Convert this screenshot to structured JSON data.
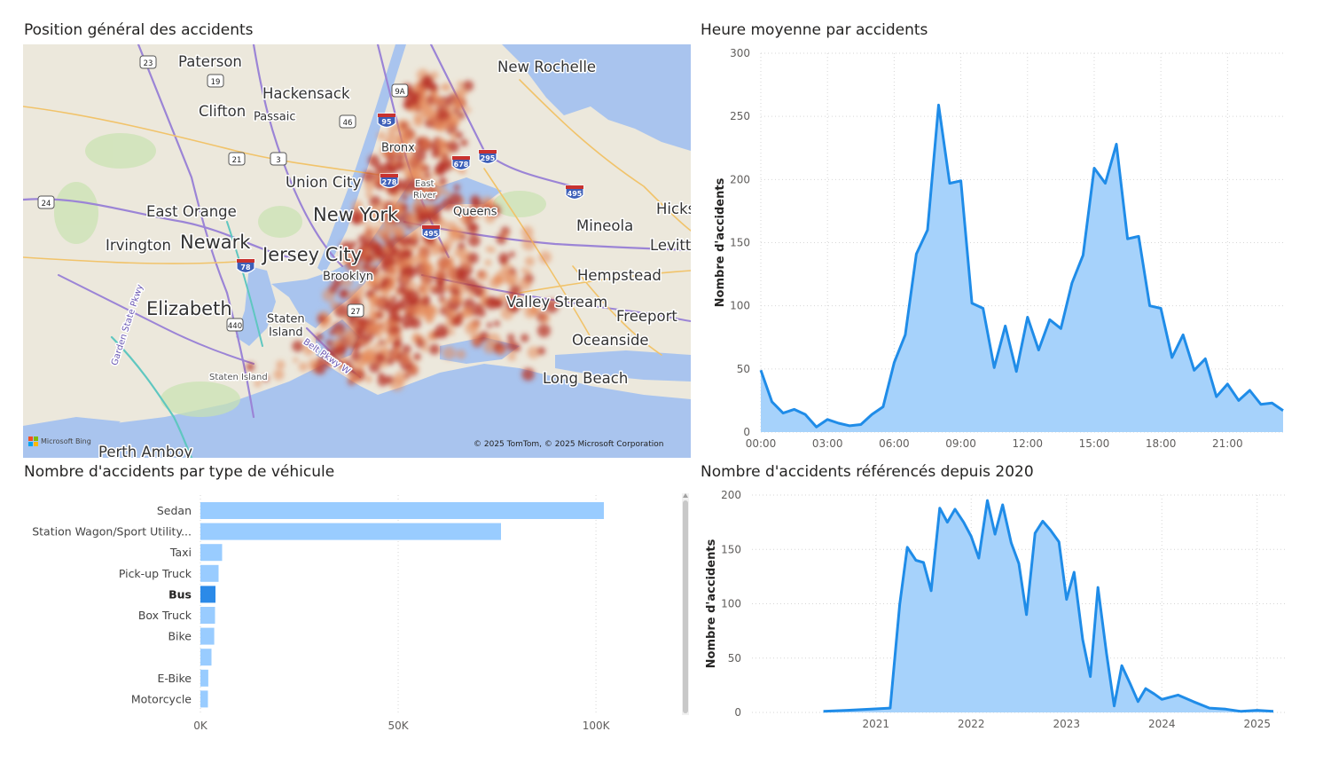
{
  "map": {
    "title": "Position général des accidents",
    "attribution": "© 2025 TomTom, © 2025 Microsoft Corporation",
    "provider": "Microsoft Bing",
    "labels": [
      {
        "text": "Paterson",
        "size": "large"
      },
      {
        "text": "New Rochelle",
        "size": "large"
      },
      {
        "text": "Hackensack",
        "size": "large"
      },
      {
        "text": "Clifton",
        "size": "large"
      },
      {
        "text": "Passaic",
        "size": "medium"
      },
      {
        "text": "Bronx",
        "size": "medium"
      },
      {
        "text": "Union City",
        "size": "large"
      },
      {
        "text": "East River",
        "size": "small"
      },
      {
        "text": "East Orange",
        "size": "large"
      },
      {
        "text": "New York",
        "size": "xlarge"
      },
      {
        "text": "Queens",
        "size": "medium"
      },
      {
        "text": "Mineola",
        "size": "large"
      },
      {
        "text": "Hicks",
        "size": "large"
      },
      {
        "text": "Irvington",
        "size": "large"
      },
      {
        "text": "Newark",
        "size": "xlarge"
      },
      {
        "text": "Jersey City",
        "size": "xlarge"
      },
      {
        "text": "Levitt",
        "size": "large"
      },
      {
        "text": "Hempstead",
        "size": "large"
      },
      {
        "text": "Brooklyn",
        "size": "medium"
      },
      {
        "text": "Elizabeth",
        "size": "xlarge"
      },
      {
        "text": "Valley Stream",
        "size": "large"
      },
      {
        "text": "Freeport",
        "size": "large"
      },
      {
        "text": "Staten Island",
        "size": "medium"
      },
      {
        "text": "Oceanside",
        "size": "large"
      },
      {
        "text": "Staten Island",
        "size": "small"
      },
      {
        "text": "Long Beach",
        "size": "large"
      },
      {
        "text": "Perth Amboy",
        "size": "large"
      },
      {
        "text": "Garden State Pkwy",
        "size": "small"
      },
      {
        "text": "Belt Pkwy W",
        "size": "small"
      }
    ],
    "shields": [
      "23",
      "19",
      "21",
      "3",
      "46",
      "95",
      "278",
      "678",
      "295",
      "9A",
      "24",
      "78",
      "440",
      "27",
      "495",
      "495"
    ]
  },
  "hour_chart": {
    "title": "Heure moyenne par accidents"
  },
  "vehicle_chart": {
    "title": "Nombre d'accidents par type de véhicule"
  },
  "year_chart": {
    "title": "Nombre d'accidents référencés depuis 2020"
  },
  "colors": {
    "line": "#1f8ce8",
    "area": "#a6d2fb",
    "bar": "#99ccff",
    "bar_selected": "#2b8ae8",
    "grid": "#d6d6d6",
    "axis_text": "#605e5c"
  },
  "chart_data": [
    {
      "type": "area",
      "title": "Heure moyenne par accidents",
      "xlabel": "",
      "ylabel": "Nombre d'accidents",
      "x_unit": "hours since 00:00 (30-minute buckets)",
      "x_ticks": [
        "00:00",
        "03:00",
        "06:00",
        "09:00",
        "12:00",
        "15:00",
        "18:00",
        "21:00"
      ],
      "ylim": [
        0,
        300
      ],
      "y_ticks": [
        0,
        50,
        100,
        150,
        200,
        250,
        300
      ],
      "grid": true,
      "series": [
        {
          "x": [
            0,
            0.5,
            1,
            1.5,
            2,
            2.5,
            3,
            3.5,
            4,
            4.5,
            5,
            5.5,
            6,
            6.5,
            7,
            7.5,
            8,
            8.5,
            9,
            9.5,
            10,
            10.5,
            11,
            11.5,
            12,
            12.5,
            13,
            13.5,
            14,
            14.5,
            15,
            15.5,
            16,
            16.5,
            17,
            17.5,
            18,
            18.5,
            19,
            19.5,
            20,
            20.5,
            21,
            21.5,
            22,
            22.5,
            23,
            23.5
          ],
          "values": [
            49,
            24,
            15,
            18,
            14,
            4,
            10,
            7,
            5,
            6,
            14,
            20,
            55,
            77,
            141,
            160,
            259,
            197,
            199,
            102,
            98,
            51,
            84,
            48,
            91,
            65,
            89,
            82,
            118,
            140,
            209,
            197,
            228,
            153,
            155,
            100,
            98,
            59,
            77,
            49,
            58,
            28,
            38,
            25,
            33,
            22,
            23,
            17
          ]
        }
      ]
    },
    {
      "type": "bar",
      "orientation": "horizontal",
      "title": "Nombre d'accidents par type de véhicule",
      "categories": [
        "Sedan",
        "Station Wagon/Sport Utility...",
        "Taxi",
        "Pick-up Truck",
        "Bus",
        "Box Truck",
        "Bike",
        "",
        "E-Bike",
        "Motorcycle"
      ],
      "values": [
        102000,
        76000,
        5500,
        4600,
        3800,
        3700,
        3500,
        2800,
        2000,
        1900
      ],
      "selected": "Bus",
      "x_ticks": [
        "0K",
        "50K",
        "100K"
      ],
      "xlim": [
        0,
        115000
      ],
      "grid": true
    },
    {
      "type": "area",
      "title": "Nombre d'accidents référencés depuis 2020",
      "xlabel": "",
      "ylabel": "Nombre d'accidents",
      "x_unit": "year (decimal)",
      "x_ticks": [
        "2021",
        "2022",
        "2023",
        "2024",
        "2025"
      ],
      "ylim": [
        0,
        200
      ],
      "y_ticks": [
        0,
        50,
        100,
        150,
        200
      ],
      "grid": true,
      "series": [
        {
          "x": [
            2020.45,
            2020.7,
            2020.95,
            2021.15,
            2021.25,
            2021.33,
            2021.42,
            2021.5,
            2021.58,
            2021.67,
            2021.75,
            2021.83,
            2021.92,
            2022.0,
            2022.08,
            2022.17,
            2022.25,
            2022.33,
            2022.42,
            2022.5,
            2022.58,
            2022.67,
            2022.75,
            2022.83,
            2022.92,
            2023.0,
            2023.08,
            2023.17,
            2023.25,
            2023.33,
            2023.42,
            2023.5,
            2023.58,
            2023.67,
            2023.75,
            2023.83,
            2023.92,
            2024.0,
            2024.17,
            2024.33,
            2024.5,
            2024.67,
            2024.83,
            2025.0,
            2025.17
          ],
          "values": [
            1,
            2,
            3,
            4,
            99,
            152,
            140,
            138,
            112,
            188,
            175,
            187,
            175,
            162,
            142,
            195,
            164,
            191,
            156,
            137,
            90,
            165,
            176,
            168,
            157,
            104,
            129,
            67,
            33,
            115,
            54,
            6,
            43,
            26,
            10,
            22,
            17,
            12,
            16,
            10,
            4,
            3,
            1,
            2,
            1
          ]
        }
      ]
    }
  ]
}
